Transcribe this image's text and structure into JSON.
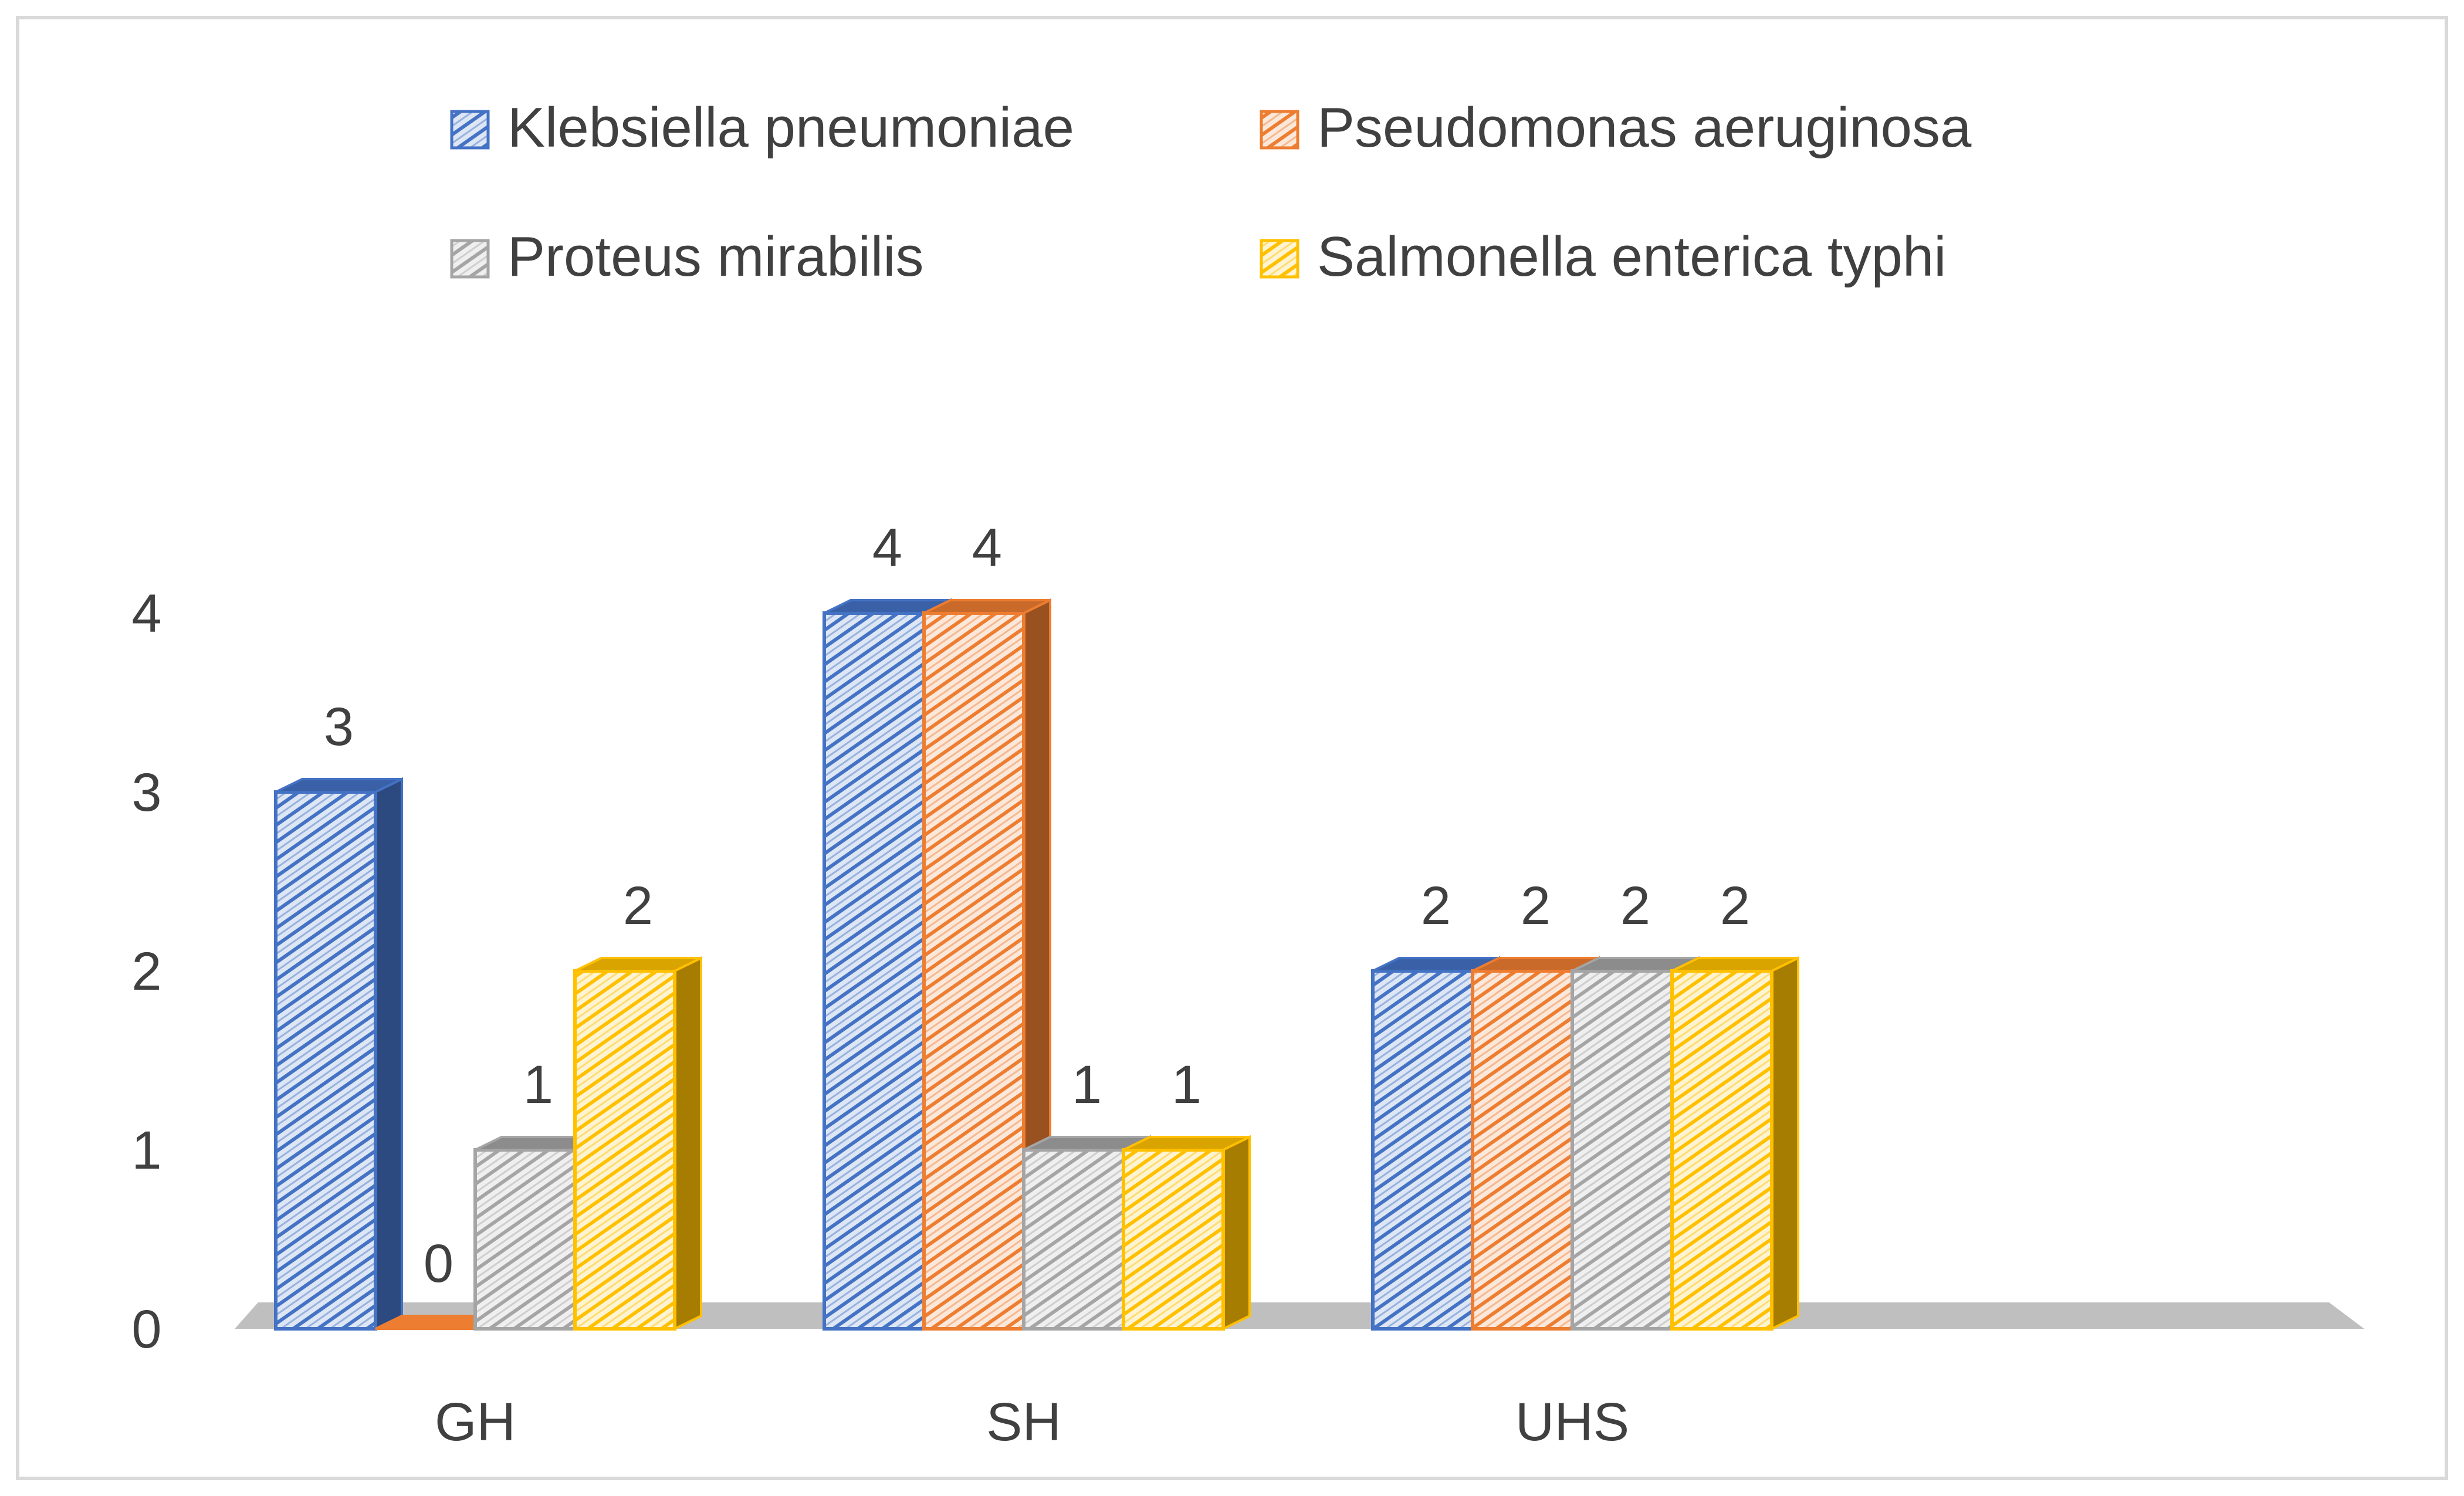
{
  "chart_data": {
    "type": "bar",
    "style": "3d-clustered-column",
    "title": "",
    "xlabel": "",
    "ylabel": "",
    "ylim": [
      0,
      4
    ],
    "yticks": [
      0,
      1,
      2,
      3,
      4
    ],
    "grid": false,
    "legend": "top",
    "categories": [
      "GH",
      "SH",
      "UHS"
    ],
    "series": [
      {
        "name": "Klebsiella pneumoniae",
        "color": "#4472C4",
        "values": [
          3,
          4,
          2
        ]
      },
      {
        "name": "Pseudomonas aeruginosa",
        "color": "#ED7D31",
        "values": [
          0,
          4,
          2
        ]
      },
      {
        "name": "Proteus mirabilis",
        "color": "#A5A5A5",
        "values": [
          1,
          1,
          2
        ]
      },
      {
        "name": "Salmonella enterica typhi",
        "color": "#FFC000",
        "values": [
          2,
          1,
          2
        ]
      }
    ]
  }
}
